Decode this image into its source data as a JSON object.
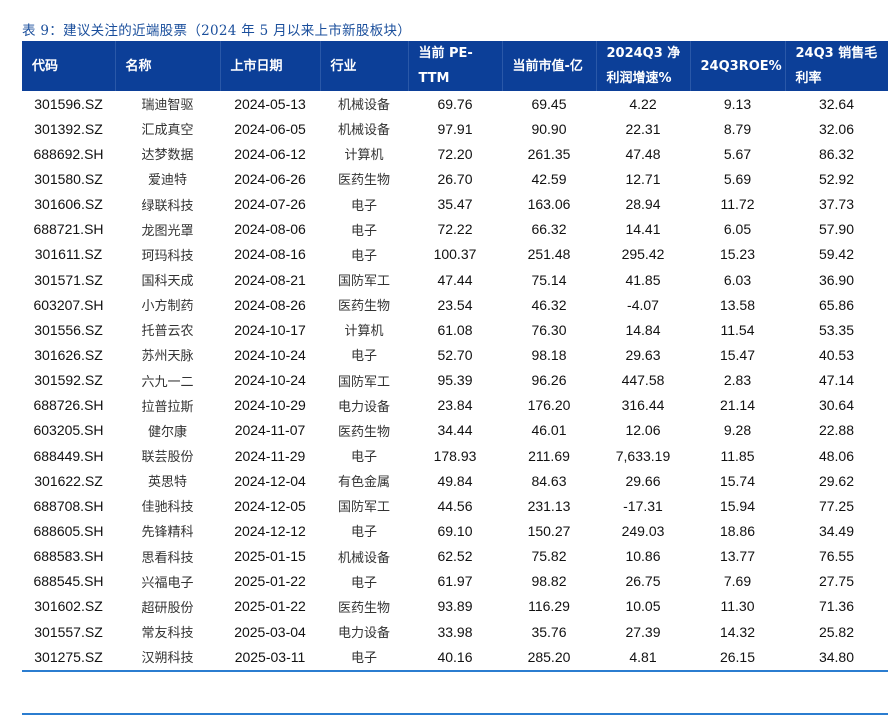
{
  "title": "表 9：建议关注的近端股票（2024 年 5 月以来上市新股板块）",
  "headers": [
    "代码",
    "名称",
    "上市日期",
    "行业",
    "当前 PE-TTM",
    "当前市值-亿",
    "2024Q3 净利润增速%",
    "24Q3ROE%",
    "24Q3 销售毛利率"
  ],
  "rows": [
    [
      "301596.SZ",
      "瑞迪智驱",
      "2024-05-13",
      "机械设备",
      "69.76",
      "69.45",
      "4.22",
      "9.13",
      "32.64"
    ],
    [
      "301392.SZ",
      "汇成真空",
      "2024-06-05",
      "机械设备",
      "97.91",
      "90.90",
      "22.31",
      "8.79",
      "32.06"
    ],
    [
      "688692.SH",
      "达梦数据",
      "2024-06-12",
      "计算机",
      "72.20",
      "261.35",
      "47.48",
      "5.67",
      "86.32"
    ],
    [
      "301580.SZ",
      "爱迪特",
      "2024-06-26",
      "医药生物",
      "26.70",
      "42.59",
      "12.71",
      "5.69",
      "52.92"
    ],
    [
      "301606.SZ",
      "绿联科技",
      "2024-07-26",
      "电子",
      "35.47",
      "163.06",
      "28.94",
      "11.72",
      "37.73"
    ],
    [
      "688721.SH",
      "龙图光罩",
      "2024-08-06",
      "电子",
      "72.22",
      "66.32",
      "14.41",
      "6.05",
      "57.90"
    ],
    [
      "301611.SZ",
      "珂玛科技",
      "2024-08-16",
      "电子",
      "100.37",
      "251.48",
      "295.42",
      "15.23",
      "59.42"
    ],
    [
      "301571.SZ",
      "国科天成",
      "2024-08-21",
      "国防军工",
      "47.44",
      "75.14",
      "41.85",
      "6.03",
      "36.90"
    ],
    [
      "603207.SH",
      "小方制药",
      "2024-08-26",
      "医药生物",
      "23.54",
      "46.32",
      "-4.07",
      "13.58",
      "65.86"
    ],
    [
      "301556.SZ",
      "托普云农",
      "2024-10-17",
      "计算机",
      "61.08",
      "76.30",
      "14.84",
      "11.54",
      "53.35"
    ],
    [
      "301626.SZ",
      "苏州天脉",
      "2024-10-24",
      "电子",
      "52.70",
      "98.18",
      "29.63",
      "15.47",
      "40.53"
    ],
    [
      "301592.SZ",
      "六九一二",
      "2024-10-24",
      "国防军工",
      "95.39",
      "96.26",
      "447.58",
      "2.83",
      "47.14"
    ],
    [
      "688726.SH",
      "拉普拉斯",
      "2024-10-29",
      "电力设备",
      "23.84",
      "176.20",
      "316.44",
      "21.14",
      "30.64"
    ],
    [
      "603205.SH",
      "健尔康",
      "2024-11-07",
      "医药生物",
      "34.44",
      "46.01",
      "12.06",
      "9.28",
      "22.88"
    ],
    [
      "688449.SH",
      "联芸股份",
      "2024-11-29",
      "电子",
      "178.93",
      "211.69",
      "7,633.19",
      "11.85",
      "48.06"
    ],
    [
      "301622.SZ",
      "英思特",
      "2024-12-04",
      "有色金属",
      "49.84",
      "84.63",
      "29.66",
      "15.74",
      "29.62"
    ],
    [
      "688708.SH",
      "佳驰科技",
      "2024-12-05",
      "国防军工",
      "44.56",
      "231.13",
      "-17.31",
      "15.94",
      "77.25"
    ],
    [
      "688605.SH",
      "先锋精科",
      "2024-12-12",
      "电子",
      "69.10",
      "150.27",
      "249.03",
      "18.86",
      "34.49"
    ],
    [
      "688583.SH",
      "思看科技",
      "2025-01-15",
      "机械设备",
      "62.52",
      "75.82",
      "10.86",
      "13.77",
      "76.55"
    ],
    [
      "688545.SH",
      "兴福电子",
      "2025-01-22",
      "电子",
      "61.97",
      "98.82",
      "26.75",
      "7.69",
      "27.75"
    ],
    [
      "301602.SZ",
      "超研股份",
      "2025-01-22",
      "医药生物",
      "93.89",
      "116.29",
      "10.05",
      "11.30",
      "71.36"
    ],
    [
      "301557.SZ",
      "常友科技",
      "2025-03-04",
      "电力设备",
      "33.98",
      "35.76",
      "27.39",
      "14.32",
      "25.82"
    ],
    [
      "301275.SZ",
      "汉朔科技",
      "2025-03-11",
      "电子",
      "40.16",
      "285.20",
      "4.81",
      "26.15",
      "34.80"
    ]
  ]
}
